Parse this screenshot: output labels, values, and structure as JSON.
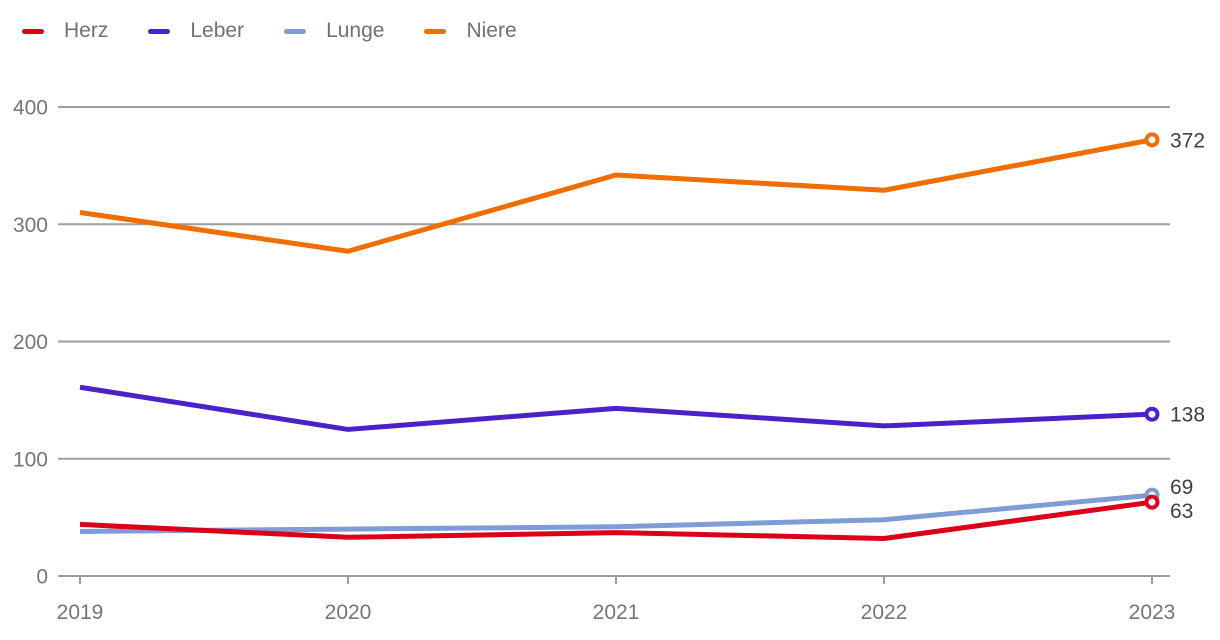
{
  "chart_data": {
    "type": "line",
    "categories": [
      "2019",
      "2020",
      "2021",
      "2022",
      "2023"
    ],
    "series": [
      {
        "name": "Herz",
        "color": "#dc0019",
        "values": [
          44,
          33,
          37,
          32,
          63
        ],
        "end_label": "63"
      },
      {
        "name": "Leber",
        "color": "#4a22c8",
        "values": [
          161,
          125,
          143,
          128,
          138
        ],
        "end_label": "138"
      },
      {
        "name": "Lunge",
        "color": "#7e9cd5",
        "values": [
          38,
          40,
          42,
          48,
          69
        ],
        "end_label": "69"
      },
      {
        "name": "Niere",
        "color": "#f06d00",
        "values": [
          310,
          277,
          342,
          329,
          372
        ],
        "end_label": "372"
      }
    ],
    "title": "",
    "xlabel": "",
    "ylabel": "",
    "ylim": [
      0,
      400
    ],
    "y_ticks": [
      0,
      100,
      200,
      300,
      400
    ],
    "grid": true,
    "legend_position": "top-left",
    "end_markers": "open-circle"
  },
  "colors": {
    "background": "#ffffff",
    "grid": "#9e9e9e",
    "axis_text": "#757575",
    "value_label": "#3c4043",
    "legend_text": "#717171"
  }
}
